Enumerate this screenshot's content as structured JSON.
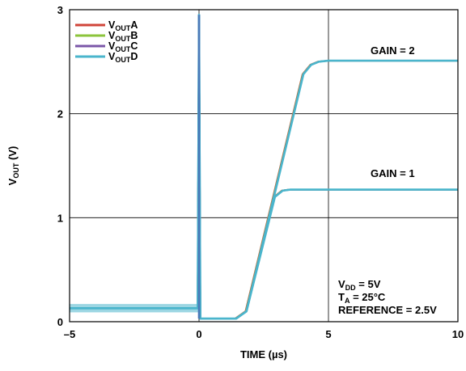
{
  "chart_data": {
    "type": "line",
    "title": "",
    "xlabel": "TIME (µs)",
    "ylabel": {
      "main": "V",
      "sub": "OUT",
      "suffix": " (V)"
    },
    "xlim": [
      -5,
      10
    ],
    "ylim": [
      0,
      3
    ],
    "x_ticks": [
      -5,
      0,
      5,
      10
    ],
    "x_tick_labels": [
      "–5",
      "0",
      "5",
      "10"
    ],
    "y_ticks": [
      0,
      1,
      2,
      3
    ],
    "y_tick_labels": [
      "0",
      "1",
      "2",
      "3"
    ],
    "grid": true,
    "legend_position": "top-left",
    "series": [
      {
        "name": "VOUTA",
        "label_main": "V",
        "label_sub": "OUT",
        "label_suffix": "A",
        "color": "#d0453a"
      },
      {
        "name": "VOUTB",
        "label_main": "V",
        "label_sub": "OUT",
        "label_suffix": "B",
        "color": "#8cc43c"
      },
      {
        "name": "VOUTC",
        "label_main": "V",
        "label_sub": "OUT",
        "label_suffix": "C",
        "color": "#7b57a8"
      },
      {
        "name": "VOUTD",
        "label_main": "V",
        "label_sub": "OUT",
        "label_suffix": "D",
        "color": "#4ab5cc"
      }
    ],
    "curves": [
      {
        "name": "GAIN = 2",
        "x": [
          -5,
          -0.05,
          0,
          0.05,
          1.4,
          1.8,
          4.0,
          4.3,
          4.6,
          5.0,
          10
        ],
        "y": [
          0.13,
          0.13,
          2.95,
          0.03,
          0.03,
          0.1,
          2.38,
          2.47,
          2.5,
          2.51,
          2.51
        ]
      },
      {
        "name": "GAIN = 1",
        "x": [
          -5,
          -0.05,
          0,
          0.05,
          1.4,
          1.8,
          2.9,
          3.2,
          3.5,
          10
        ],
        "y": [
          0.13,
          0.13,
          2.95,
          0.03,
          0.03,
          0.1,
          1.2,
          1.26,
          1.27,
          1.27
        ]
      }
    ],
    "annotations": {
      "gain2": "GAIN = 2",
      "gain1": "GAIN = 1",
      "vdd": {
        "main": "V",
        "sub": "DD",
        "rest": " = 5V"
      },
      "ta": {
        "main": "T",
        "sub": "A",
        "rest": " = 25°C"
      },
      "reference": "REFERENCE = 2.5V"
    }
  }
}
